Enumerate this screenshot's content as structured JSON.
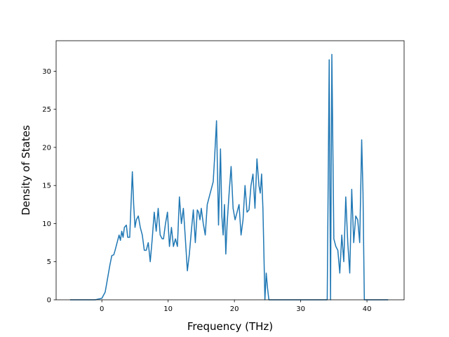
{
  "chart_data": {
    "type": "line",
    "title": "",
    "xlabel": "Frequency (THz)",
    "ylabel": "Density of States",
    "xlim": [
      -6.9,
      45.6
    ],
    "ylim": [
      0,
      34
    ],
    "xticks": [
      0,
      10,
      20,
      30,
      40
    ],
    "yticks": [
      0,
      5,
      10,
      15,
      20,
      25,
      30
    ],
    "grid": false,
    "legend": "none",
    "line_color": "#1f77b4",
    "series": [
      {
        "x": [
          -4.8,
          -1.0,
          0.0,
          0.5,
          0.8,
          1.2,
          1.5,
          1.8,
          2.0,
          2.3,
          2.6,
          2.8,
          3.0,
          3.2,
          3.4,
          3.7,
          3.9,
          4.0,
          4.2,
          4.4,
          4.6,
          4.8,
          5.0,
          5.2,
          5.5,
          5.8,
          6.1,
          6.4,
          6.7,
          7.0,
          7.3,
          7.6,
          7.9,
          8.2,
          8.5,
          8.8,
          9.1,
          9.3,
          9.6,
          9.9,
          10.2,
          10.5,
          10.8,
          11.1,
          11.4,
          11.7,
          12.0,
          12.3,
          12.6,
          12.9,
          13.2,
          13.5,
          13.8,
          14.1,
          14.4,
          14.6,
          14.8,
          15.0,
          15.3,
          15.6,
          15.9,
          16.2,
          16.5,
          16.8,
          17.0,
          17.3,
          17.6,
          17.9,
          18.1,
          18.3,
          18.5,
          18.7,
          18.9,
          19.2,
          19.5,
          19.8,
          20.1,
          20.4,
          20.7,
          21.0,
          21.3,
          21.6,
          21.9,
          22.2,
          22.5,
          22.8,
          23.1,
          23.4,
          23.7,
          23.9,
          24.1,
          24.3,
          24.6,
          24.8,
          25.0,
          25.2,
          25.5,
          25.8,
          26.0,
          30.0,
          34.0,
          34.3,
          34.5,
          34.7,
          35.0,
          35.3,
          35.6,
          35.9,
          36.2,
          36.5,
          36.8,
          37.1,
          37.4,
          37.7,
          38.0,
          38.3,
          38.6,
          38.9,
          39.2,
          39.4,
          39.6,
          40.0,
          43.2
        ],
        "y": [
          0,
          0,
          0.2,
          1.0,
          2.5,
          4.5,
          5.8,
          5.9,
          6.5,
          7.5,
          8.5,
          7.8,
          9.0,
          8.2,
          9.5,
          9.8,
          8.2,
          8.2,
          8.2,
          12.5,
          16.8,
          12.5,
          9.5,
          10.5,
          11.0,
          9.5,
          8.5,
          6.5,
          6.5,
          7.5,
          5.0,
          8.0,
          11.5,
          9.0,
          12.0,
          8.5,
          8.0,
          8.0,
          10.0,
          11.5,
          7.0,
          9.5,
          7.0,
          8.0,
          7.0,
          13.5,
          10.0,
          12.0,
          8.0,
          3.8,
          6.0,
          9.0,
          11.8,
          7.5,
          11.8,
          11.5,
          10.5,
          12.0,
          10.0,
          8.5,
          12.5,
          13.5,
          14.5,
          15.5,
          18.5,
          23.5,
          9.8,
          19.8,
          11.0,
          8.5,
          12.5,
          6.0,
          10.0,
          14.0,
          17.5,
          12.0,
          10.5,
          11.5,
          12.5,
          8.5,
          10.5,
          15.0,
          11.5,
          11.8,
          15.0,
          16.5,
          12.0,
          18.5,
          15.0,
          14.0,
          16.5,
          12.0,
          0.0,
          3.5,
          1.5,
          0.0,
          0.0,
          0.0,
          0.0,
          0.0,
          0.0,
          31.5,
          0.0,
          32.2,
          8.0,
          7.0,
          6.5,
          3.5,
          8.5,
          5.0,
          13.5,
          7.5,
          3.5,
          14.5,
          7.5,
          11.0,
          10.5,
          7.5,
          21.0,
          14.0,
          0.0,
          0.0,
          0.0
        ]
      }
    ]
  }
}
